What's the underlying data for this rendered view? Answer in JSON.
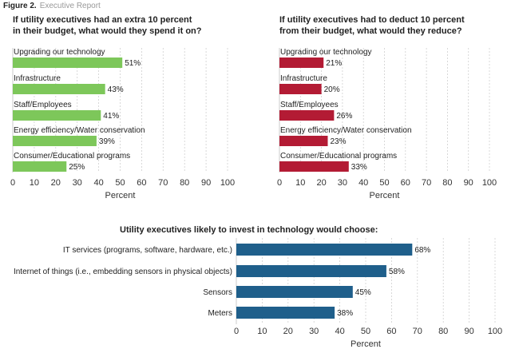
{
  "figure": {
    "number": "Figure 2.",
    "source": "Executive Report"
  },
  "chart_data": [
    {
      "type": "bar",
      "title": "If utility executives had an extra 10 percent\nin their budget, what would they spend it on?",
      "categories": [
        "Upgrading our technology",
        "Infrastructure",
        "Staff/Employees",
        "Energy efficiency/Water conservation",
        "Consumer/Educational programs"
      ],
      "values": [
        51,
        43,
        41,
        39,
        25
      ],
      "value_labels": [
        "51%",
        "43%",
        "41%",
        "39%",
        "25%"
      ],
      "xlabel": "Percent",
      "xlim": [
        0,
        100
      ],
      "ticks": [
        "0",
        "10",
        "20",
        "30",
        "40",
        "50",
        "60",
        "70",
        "80",
        "90",
        "100"
      ],
      "color": "#7dc75a",
      "grid": true,
      "orientation": "horizontal"
    },
    {
      "type": "bar",
      "title": "If utility executives had to deduct 10 percent\nfrom their budget, what would they reduce?",
      "categories": [
        "Upgrading our technology",
        "Infrastructure",
        "Staff/Employees",
        "Energy efficiency/Water conservation",
        "Consumer/Educational programs"
      ],
      "values": [
        21,
        20,
        26,
        23,
        33
      ],
      "value_labels": [
        "21%",
        "20%",
        "26%",
        "23%",
        "33%"
      ],
      "xlabel": "Percent",
      "xlim": [
        0,
        100
      ],
      "ticks": [
        "0",
        "10",
        "20",
        "30",
        "40",
        "50",
        "60",
        "70",
        "80",
        "90",
        "100"
      ],
      "color": "#b31b34",
      "grid": true,
      "orientation": "horizontal"
    },
    {
      "type": "bar",
      "title": "Utility executives likely to invest in technology would choose:",
      "categories": [
        "IT services (programs, software, hardware, etc.)",
        "Internet of things (i.e., embedding sensors in physical objects)",
        "Sensors",
        "Meters"
      ],
      "values": [
        68,
        58,
        45,
        38
      ],
      "value_labels": [
        "68%",
        "58%",
        "45%",
        "38%"
      ],
      "xlabel": "Percent",
      "xlim": [
        0,
        100
      ],
      "ticks": [
        "0",
        "10",
        "20",
        "30",
        "40",
        "50",
        "60",
        "70",
        "80",
        "90",
        "100"
      ],
      "color": "#1f5f8b",
      "grid": true,
      "orientation": "horizontal"
    }
  ]
}
